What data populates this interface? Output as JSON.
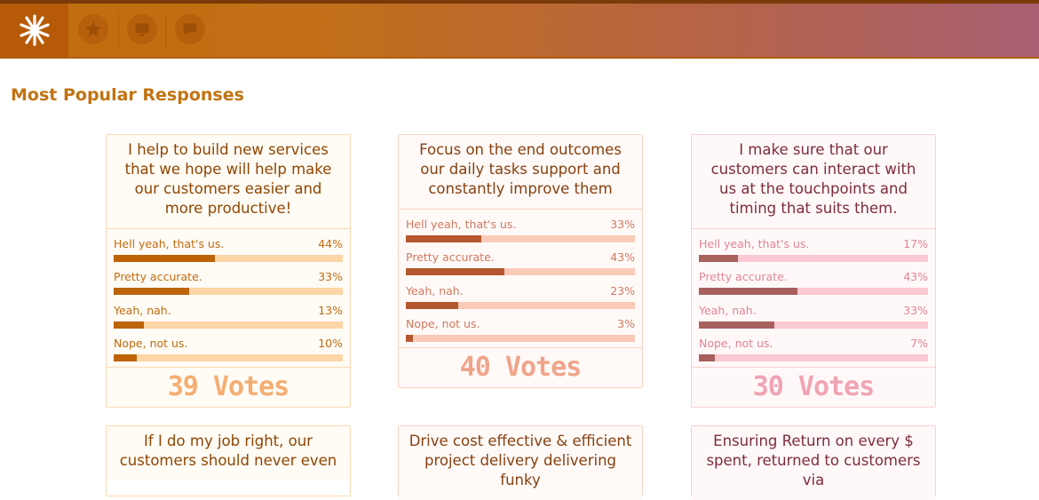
{
  "section_title": "Most Popular Responses",
  "nav": {
    "logo_icon": "asterisk-logo-icon",
    "icons": [
      "star-icon",
      "screen-icon",
      "chat-bubble-icon"
    ]
  },
  "theme_colors": {
    "orange": "#bd6308",
    "coral": "#b5582f",
    "rose": "#a8605e"
  },
  "cards": [
    {
      "question": "I help to build new services that we hope will help make our customers easier and more productive!",
      "votes": "39 Votes",
      "answers": [
        {
          "label": "Hell yeah, that's us.",
          "pct": "44%",
          "value": 0.44
        },
        {
          "label": "Pretty accurate.",
          "pct": "33%",
          "value": 0.33
        },
        {
          "label": "Yeah, nah.",
          "pct": "13%",
          "value": 0.13
        },
        {
          "label": "Nope, not us.",
          "pct": "10%",
          "value": 0.1
        }
      ]
    },
    {
      "question": "Focus on the end outcomes our daily tasks support and constantly improve them",
      "votes": "40 Votes",
      "answers": [
        {
          "label": "Hell yeah, that's us.",
          "pct": "33%",
          "value": 0.33
        },
        {
          "label": "Pretty accurate.",
          "pct": "43%",
          "value": 0.43
        },
        {
          "label": "Yeah, nah.",
          "pct": "23%",
          "value": 0.23
        },
        {
          "label": "Nope, not us.",
          "pct": "3%",
          "value": 0.03
        }
      ]
    },
    {
      "question": "I make sure that our customers can interact with us at the touchpoints and timing that suits them.",
      "votes": "30 Votes",
      "answers": [
        {
          "label": "Hell yeah, that's us.",
          "pct": "17%",
          "value": 0.17
        },
        {
          "label": "Pretty accurate.",
          "pct": "43%",
          "value": 0.43
        },
        {
          "label": "Yeah, nah.",
          "pct": "33%",
          "value": 0.33
        },
        {
          "label": "Nope, not us.",
          "pct": "7%",
          "value": 0.07
        }
      ]
    },
    {
      "question": "If I do my job right, our customers should never even"
    },
    {
      "question": "Drive cost effective & efficient project delivery delivering funky"
    },
    {
      "question": "Ensuring Return on every $ spent, returned to customers via"
    }
  ]
}
